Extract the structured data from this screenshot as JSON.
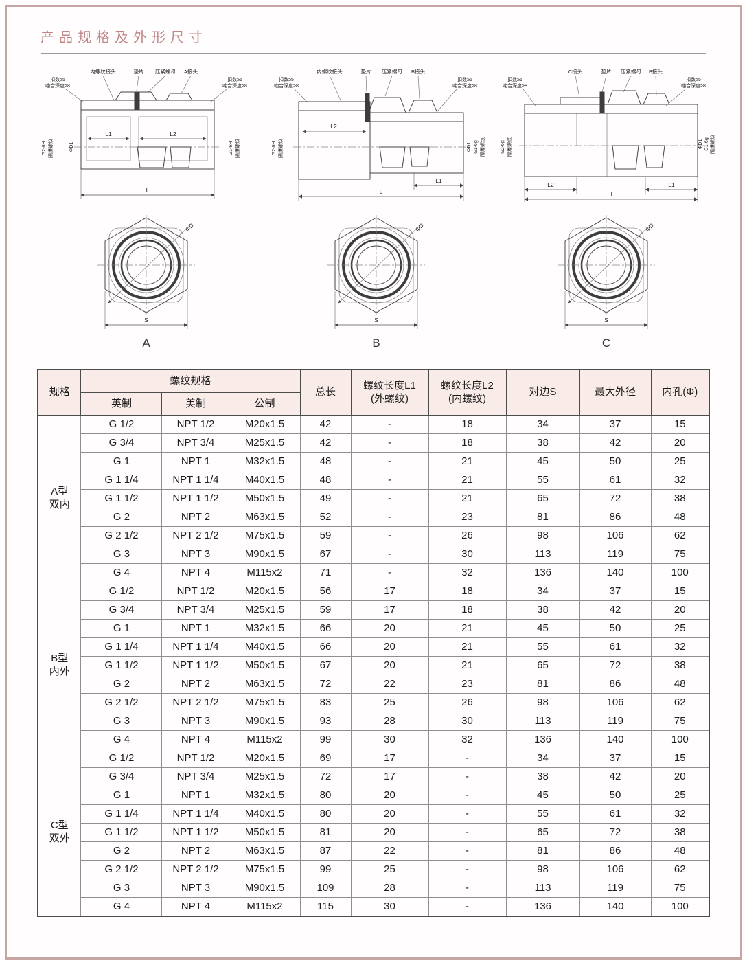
{
  "page": {
    "title": "产品规格及外形尺寸"
  },
  "drawings": {
    "a": {
      "letter": "A",
      "labels": {
        "connector_left": "内螺纹接头",
        "gasket": "垫片",
        "nut": "压紧螺母",
        "connector_right": "A接头",
        "note1": "扣数≥5",
        "note2": "啮合深度≥8",
        "thread_left_1": "G2-6H",
        "thread_left_2": "隔爆螺纹",
        "dia": "ΦD1",
        "thread_right_1": "G1-6H",
        "thread_right_2": "隔爆螺纹",
        "dim_l1": "L1",
        "dim_l2": "L2",
        "dim_l": "L",
        "hex_dia": "ΦD",
        "hex_s": "S"
      }
    },
    "b": {
      "letter": "B",
      "labels": {
        "connector_left": "内螺纹接头",
        "gasket": "垫片",
        "nut": "压紧螺母",
        "connector_right": "B接头",
        "note1": "扣数≥5",
        "note2": "啮合深度≥8",
        "thread_left_1": "G2-6H",
        "thread_left_2": "隔爆螺纹",
        "dia": "ΦD1",
        "thread_right_1": "G1-6g",
        "thread_right_2": "隔爆螺纹",
        "dim_l1": "L1",
        "dim_l2": "L2",
        "dim_l": "L",
        "hex_dia": "ΦD",
        "hex_s": "S"
      }
    },
    "c": {
      "letter": "C",
      "labels": {
        "connector_left": "C接头",
        "gasket": "垫片",
        "nut": "压紧螺母",
        "connector_right": "B接头",
        "note1": "扣数≥5",
        "note2": "啮合深度≥8",
        "thread_left_1": "G2-6g",
        "thread_left_2": "隔爆螺纹",
        "dia": "ΦD1",
        "thread_right_1": "G1-6g",
        "thread_right_2": "隔爆螺纹",
        "dim_l1": "L1",
        "dim_l2": "L2",
        "dim_l": "L",
        "hex_dia": "ΦD",
        "hex_s": "S"
      }
    }
  },
  "table": {
    "header": {
      "col_spec": "规格",
      "col_thread": "螺纹规格",
      "col_imperial": "英制",
      "col_american": "美制",
      "col_metric": "公制",
      "col_total_length": "总长",
      "col_l1_line1": "螺纹长度L1",
      "col_l1_line2": "(外螺纹)",
      "col_l2_line1": "螺纹长度L2",
      "col_l2_line2": "(内螺纹)",
      "col_s": "对边S",
      "col_max_od": "最大外径",
      "col_bore": "内孔(Φ)"
    },
    "groups": [
      {
        "name_line1": "A型",
        "name_line2": "双内",
        "rows": [
          [
            "G 1/2",
            "NPT 1/2",
            "M20x1.5",
            "42",
            "-",
            "18",
            "34",
            "37",
            "15"
          ],
          [
            "G 3/4",
            "NPT 3/4",
            "M25x1.5",
            "42",
            "-",
            "18",
            "38",
            "42",
            "20"
          ],
          [
            "G 1",
            "NPT 1",
            "M32x1.5",
            "48",
            "-",
            "21",
            "45",
            "50",
            "25"
          ],
          [
            "G 1 1/4",
            "NPT 1 1/4",
            "M40x1.5",
            "48",
            "-",
            "21",
            "55",
            "61",
            "32"
          ],
          [
            "G 1 1/2",
            "NPT 1 1/2",
            "M50x1.5",
            "49",
            "-",
            "21",
            "65",
            "72",
            "38"
          ],
          [
            "G 2",
            "NPT 2",
            "M63x1.5",
            "52",
            "-",
            "23",
            "81",
            "86",
            "48"
          ],
          [
            "G 2 1/2",
            "NPT 2 1/2",
            "M75x1.5",
            "59",
            "-",
            "26",
            "98",
            "106",
            "62"
          ],
          [
            "G 3",
            "NPT 3",
            "M90x1.5",
            "67",
            "-",
            "30",
            "113",
            "119",
            "75"
          ],
          [
            "G 4",
            "NPT 4",
            "M115x2",
            "71",
            "-",
            "32",
            "136",
            "140",
            "100"
          ]
        ]
      },
      {
        "name_line1": "B型",
        "name_line2": "内外",
        "rows": [
          [
            "G 1/2",
            "NPT 1/2",
            "M20x1.5",
            "56",
            "17",
            "18",
            "34",
            "37",
            "15"
          ],
          [
            "G 3/4",
            "NPT 3/4",
            "M25x1.5",
            "59",
            "17",
            "18",
            "38",
            "42",
            "20"
          ],
          [
            "G 1",
            "NPT 1",
            "M32x1.5",
            "66",
            "20",
            "21",
            "45",
            "50",
            "25"
          ],
          [
            "G 1 1/4",
            "NPT 1 1/4",
            "M40x1.5",
            "66",
            "20",
            "21",
            "55",
            "61",
            "32"
          ],
          [
            "G 1 1/2",
            "NPT 1 1/2",
            "M50x1.5",
            "67",
            "20",
            "21",
            "65",
            "72",
            "38"
          ],
          [
            "G 2",
            "NPT 2",
            "M63x1.5",
            "72",
            "22",
            "23",
            "81",
            "86",
            "48"
          ],
          [
            "G 2 1/2",
            "NPT 2 1/2",
            "M75x1.5",
            "83",
            "25",
            "26",
            "98",
            "106",
            "62"
          ],
          [
            "G 3",
            "NPT 3",
            "M90x1.5",
            "93",
            "28",
            "30",
            "113",
            "119",
            "75"
          ],
          [
            "G 4",
            "NPT 4",
            "M115x2",
            "99",
            "30",
            "32",
            "136",
            "140",
            "100"
          ]
        ]
      },
      {
        "name_line1": "C型",
        "name_line2": "双外",
        "rows": [
          [
            "G 1/2",
            "NPT 1/2",
            "M20x1.5",
            "69",
            "17",
            "-",
            "34",
            "37",
            "15"
          ],
          [
            "G 3/4",
            "NPT 3/4",
            "M25x1.5",
            "72",
            "17",
            "-",
            "38",
            "42",
            "20"
          ],
          [
            "G 1",
            "NPT 1",
            "M32x1.5",
            "80",
            "20",
            "-",
            "45",
            "50",
            "25"
          ],
          [
            "G 1 1/4",
            "NPT 1 1/4",
            "M40x1.5",
            "80",
            "20",
            "-",
            "55",
            "61",
            "32"
          ],
          [
            "G 1 1/2",
            "NPT 1 1/2",
            "M50x1.5",
            "81",
            "20",
            "-",
            "65",
            "72",
            "38"
          ],
          [
            "G 2",
            "NPT 2",
            "M63x1.5",
            "87",
            "22",
            "-",
            "81",
            "86",
            "48"
          ],
          [
            "G 2 1/2",
            "NPT 2 1/2",
            "M75x1.5",
            "99",
            "25",
            "-",
            "98",
            "106",
            "62"
          ],
          [
            "G 3",
            "NPT 3",
            "M90x1.5",
            "109",
            "28",
            "-",
            "113",
            "119",
            "75"
          ],
          [
            "G 4",
            "NPT 4",
            "M115x2",
            "115",
            "30",
            "-",
            "136",
            "140",
            "100"
          ]
        ]
      }
    ]
  }
}
